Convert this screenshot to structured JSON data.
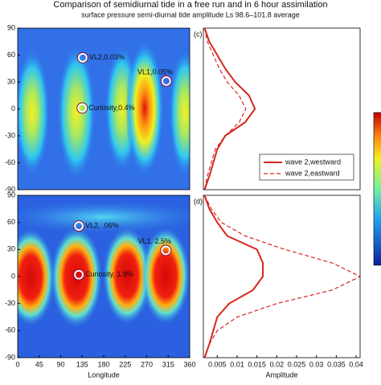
{
  "title": "Comparison of semidiurnal tide in a free run and in 6 hour assimilation",
  "subtitle": "surface pressure semi-diurnal tide amplitude Ls 98.6–101.8 average",
  "chart_data": [
    {
      "type": "scatter",
      "xlim": [
        0,
        360
      ],
      "ylim": [
        -90,
        90
      ],
      "yticks": [
        90,
        60,
        30,
        0,
        -30,
        -60,
        -90
      ],
      "x": [
        136,
        311,
        135
      ],
      "values": [
        57,
        31,
        1
      ],
      "point_labels": [
        "VL2,0.03%",
        "VL1,0.05%",
        "Curiosity,0.4%"
      ],
      "color": "#ffffff"
    },
    {
      "type": "scatter",
      "xlim": [
        0,
        360
      ],
      "ylim": [
        -90,
        90
      ],
      "yticks": [
        90,
        60,
        30,
        0,
        -30,
        -60,
        -90
      ],
      "xticks": [
        0,
        45,
        90,
        135,
        180,
        225,
        270,
        315,
        360
      ],
      "xlabel": "Longitude",
      "x": [
        128,
        310,
        128
      ],
      "values": [
        56,
        29,
        2
      ],
      "point_labels": [
        "VL2, .06%",
        "VL1, 2.5%",
        "Curiosity, 1.9%"
      ],
      "color": "#ffffff"
    },
    {
      "type": "line",
      "panel": "(c)",
      "xlim": [
        0.0015,
        0.041
      ],
      "ylim": [
        -90,
        90
      ],
      "legend": "lower right",
      "y": [
        90,
        75,
        60,
        45,
        30,
        15,
        0,
        -15,
        -30,
        -45,
        -60,
        -75,
        -90
      ],
      "series": [
        {
          "name": "wave 2,westward",
          "color": "#d7261e",
          "dash": false,
          "values": [
            0.0018,
            0.003,
            0.005,
            0.007,
            0.0095,
            0.013,
            0.0145,
            0.012,
            0.007,
            0.005,
            0.004,
            0.003,
            0.0018
          ]
        },
        {
          "name": "wave 2,eastward",
          "color": "#d7261e",
          "dash": true,
          "values": [
            0.0018,
            0.0025,
            0.004,
            0.0055,
            0.0075,
            0.0105,
            0.0122,
            0.0105,
            0.007,
            0.0045,
            0.0035,
            0.0025,
            0.0018
          ]
        }
      ]
    },
    {
      "type": "line",
      "panel": "(d)",
      "xlim": [
        0.0015,
        0.041
      ],
      "ylim": [
        -90,
        90
      ],
      "xticks": [
        0.005,
        0.01,
        0.015,
        0.02,
        0.025,
        0.03,
        0.035,
        0.04
      ],
      "xlabel": "Amplitude",
      "y": [
        90,
        75,
        60,
        45,
        30,
        15,
        0,
        -15,
        -30,
        -45,
        -60,
        -75,
        -90
      ],
      "series": [
        {
          "name": "wave 2,westward",
          "color": "#d7261e",
          "dash": false,
          "values": [
            0.0018,
            0.003,
            0.005,
            0.0075,
            0.015,
            0.0165,
            0.0165,
            0.014,
            0.008,
            0.005,
            0.004,
            0.003,
            0.0018
          ]
        },
        {
          "name": "wave 2,eastward",
          "color": "#d7261e",
          "dash": true,
          "values": [
            0.0018,
            0.0035,
            0.006,
            0.012,
            0.022,
            0.034,
            0.041,
            0.034,
            0.02,
            0.01,
            0.005,
            0.003,
            0.0018
          ]
        }
      ]
    }
  ]
}
